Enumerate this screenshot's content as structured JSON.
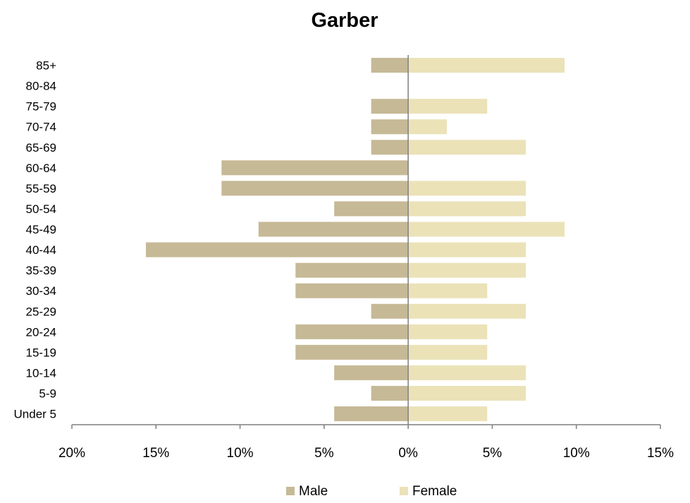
{
  "chart_data": {
    "type": "bar",
    "orientation": "horizontal",
    "title": "Garber",
    "categories": [
      "Under 5",
      "5-9",
      "10-14",
      "15-19",
      "20-24",
      "25-29",
      "30-34",
      "35-39",
      "40-44",
      "45-49",
      "50-54",
      "55-59",
      "60-64",
      "65-69",
      "70-74",
      "75-79",
      "80-84",
      "85+"
    ],
    "series": [
      {
        "name": "Male",
        "color": "#c6b996",
        "values": [
          4.4,
          2.2,
          4.4,
          6.7,
          6.7,
          2.2,
          6.7,
          6.7,
          15.6,
          8.9,
          4.4,
          11.1,
          11.1,
          2.2,
          2.2,
          2.2,
          0,
          2.2
        ]
      },
      {
        "name": "Female",
        "color": "#ebe2b8",
        "values": [
          4.7,
          7.0,
          7.0,
          4.7,
          4.7,
          7.0,
          4.7,
          7.0,
          7.0,
          9.3,
          7.0,
          7.0,
          0,
          7.0,
          2.3,
          4.7,
          0,
          9.3
        ]
      }
    ],
    "x_ticks": [
      "20%",
      "15%",
      "10%",
      "5%",
      "0%",
      "5%",
      "10%",
      "15%"
    ],
    "xlim": [
      -20,
      15
    ],
    "value_unit": "%",
    "grid": false,
    "legend_position": "bottom"
  }
}
